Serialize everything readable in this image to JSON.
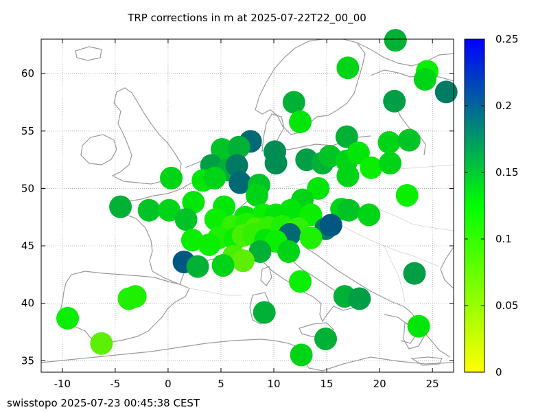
{
  "title": "TRP corrections in m at 2025-07-22T22_00_00",
  "footer": "swisstopo 2025-07-23 00:45:38 CEST",
  "colors": {
    "station_low": "#ffff00",
    "station_mid": "#00ff00",
    "station_high": "#0000ff"
  },
  "chart_data": {
    "type": "scatter",
    "x_ticks": [
      -10,
      -5,
      0,
      5,
      10,
      15,
      20,
      25
    ],
    "y_ticks": [
      35,
      40,
      45,
      50,
      55,
      60
    ],
    "xlim": [
      -12,
      27
    ],
    "ylim": [
      34,
      63
    ],
    "grid": true,
    "colorbar": {
      "ticks": [
        "0",
        "0.05",
        "0.1",
        "0.15",
        "0.2",
        "0.25"
      ],
      "range": [
        0,
        0.25
      ],
      "stops": [
        "#ffff00",
        "#00ff00",
        "#0000ff"
      ]
    },
    "stations": [
      {
        "lon": 21.5,
        "lat": 62.9,
        "val": 0.16
      },
      {
        "lon": 17.0,
        "lat": 60.5,
        "val": 0.14
      },
      {
        "lon": 24.5,
        "lat": 60.2,
        "val": 0.12
      },
      {
        "lon": 24.3,
        "lat": 59.5,
        "val": 0.14
      },
      {
        "lon": 26.3,
        "lat": 58.4,
        "val": 0.19
      },
      {
        "lon": 21.4,
        "lat": 57.6,
        "val": 0.17
      },
      {
        "lon": 11.9,
        "lat": 57.5,
        "val": 0.16
      },
      {
        "lon": 12.5,
        "lat": 55.8,
        "val": 0.13
      },
      {
        "lon": 7.8,
        "lat": 54.1,
        "val": 0.2
      },
      {
        "lon": 16.9,
        "lat": 54.5,
        "val": 0.16
      },
      {
        "lon": 20.9,
        "lat": 54.0,
        "val": 0.14
      },
      {
        "lon": 22.8,
        "lat": 54.2,
        "val": 0.15
      },
      {
        "lon": 5.1,
        "lat": 53.4,
        "val": 0.15
      },
      {
        "lon": 6.7,
        "lat": 53.6,
        "val": 0.16
      },
      {
        "lon": 10.1,
        "lat": 53.2,
        "val": 0.18
      },
      {
        "lon": 10.2,
        "lat": 52.2,
        "val": 0.18
      },
      {
        "lon": 13.1,
        "lat": 52.5,
        "val": 0.17
      },
      {
        "lon": 14.6,
        "lat": 52.2,
        "val": 0.16
      },
      {
        "lon": 15.3,
        "lat": 52.8,
        "val": 0.15
      },
      {
        "lon": 16.9,
        "lat": 52.4,
        "val": 0.14
      },
      {
        "lon": 18.0,
        "lat": 53.1,
        "val": 0.13
      },
      {
        "lon": 19.2,
        "lat": 51.8,
        "val": 0.12
      },
      {
        "lon": 21.0,
        "lat": 52.2,
        "val": 0.14
      },
      {
        "lon": 4.1,
        "lat": 52.0,
        "val": 0.17
      },
      {
        "lon": 5.6,
        "lat": 51.6,
        "val": 0.16
      },
      {
        "lon": 6.5,
        "lat": 52.0,
        "val": 0.19
      },
      {
        "lon": 17.0,
        "lat": 51.1,
        "val": 0.14
      },
      {
        "lon": 0.3,
        "lat": 50.9,
        "val": 0.14
      },
      {
        "lon": 3.3,
        "lat": 50.7,
        "val": 0.13
      },
      {
        "lon": 4.4,
        "lat": 50.9,
        "val": 0.14
      },
      {
        "lon": 6.8,
        "lat": 50.5,
        "val": 0.2
      },
      {
        "lon": 8.6,
        "lat": 50.3,
        "val": 0.15
      },
      {
        "lon": 8.4,
        "lat": 49.4,
        "val": 0.14
      },
      {
        "lon": 14.2,
        "lat": 50.0,
        "val": 0.13
      },
      {
        "lon": 22.6,
        "lat": 49.4,
        "val": 0.12
      },
      {
        "lon": 12.7,
        "lat": 49.0,
        "val": 0.14
      },
      {
        "lon": 2.4,
        "lat": 48.8,
        "val": 0.13
      },
      {
        "lon": -4.5,
        "lat": 48.4,
        "val": 0.16
      },
      {
        "lon": -1.8,
        "lat": 48.1,
        "val": 0.15
      },
      {
        "lon": 0.1,
        "lat": 48.1,
        "val": 0.14
      },
      {
        "lon": 5.3,
        "lat": 48.4,
        "val": 0.13
      },
      {
        "lon": 16.4,
        "lat": 48.2,
        "val": 0.14
      },
      {
        "lon": 17.1,
        "lat": 48.1,
        "val": 0.15
      },
      {
        "lon": 19.0,
        "lat": 47.7,
        "val": 0.14
      },
      {
        "lon": 1.7,
        "lat": 47.3,
        "val": 0.15
      },
      {
        "lon": 4.5,
        "lat": 47.3,
        "val": 0.12
      },
      {
        "lon": 7.3,
        "lat": 47.5,
        "val": 0.13
      },
      {
        "lon": 9.0,
        "lat": 47.7,
        "val": 0.12
      },
      {
        "lon": 10.2,
        "lat": 47.7,
        "val": 0.13
      },
      {
        "lon": 11.6,
        "lat": 48.1,
        "val": 0.13
      },
      {
        "lon": 13.5,
        "lat": 47.7,
        "val": 0.12
      },
      {
        "lon": 6.1,
        "lat": 46.7,
        "val": 0.1
      },
      {
        "lon": 7.4,
        "lat": 46.9,
        "val": 0.11
      },
      {
        "lon": 8.3,
        "lat": 46.5,
        "val": 0.09
      },
      {
        "lon": 9.5,
        "lat": 46.6,
        "val": 0.1
      },
      {
        "lon": 10.8,
        "lat": 46.7,
        "val": 0.11
      },
      {
        "lon": 12.3,
        "lat": 46.5,
        "val": 0.1
      },
      {
        "lon": 11.5,
        "lat": 46.0,
        "val": 0.2
      },
      {
        "lon": 14.9,
        "lat": 46.5,
        "val": 0.19
      },
      {
        "lon": 15.4,
        "lat": 46.8,
        "val": 0.21
      },
      {
        "lon": 4.8,
        "lat": 45.7,
        "val": 0.11
      },
      {
        "lon": 6.3,
        "lat": 45.6,
        "val": 0.12
      },
      {
        "lon": 7.1,
        "lat": 45.9,
        "val": 0.09
      },
      {
        "lon": 8.1,
        "lat": 46.0,
        "val": 0.1
      },
      {
        "lon": 9.2,
        "lat": 45.5,
        "val": 0.13
      },
      {
        "lon": 10.2,
        "lat": 45.4,
        "val": 0.12
      },
      {
        "lon": 13.5,
        "lat": 45.7,
        "val": 0.11
      },
      {
        "lon": 2.3,
        "lat": 45.5,
        "val": 0.12
      },
      {
        "lon": 3.9,
        "lat": 45.1,
        "val": 0.12
      },
      {
        "lon": 8.7,
        "lat": 44.5,
        "val": 0.16
      },
      {
        "lon": 11.4,
        "lat": 44.5,
        "val": 0.14
      },
      {
        "lon": 6.2,
        "lat": 44.1,
        "val": 0.09
      },
      {
        "lon": 7.1,
        "lat": 43.7,
        "val": 0.08
      },
      {
        "lon": 1.5,
        "lat": 43.6,
        "val": 0.21
      },
      {
        "lon": 2.8,
        "lat": 43.2,
        "val": 0.16
      },
      {
        "lon": 5.2,
        "lat": 43.3,
        "val": 0.14
      },
      {
        "lon": 23.3,
        "lat": 42.6,
        "val": 0.17
      },
      {
        "lon": 12.5,
        "lat": 41.9,
        "val": 0.12
      },
      {
        "lon": -3.7,
        "lat": 40.4,
        "val": 0.11
      },
      {
        "lon": -3.1,
        "lat": 40.6,
        "val": 0.11
      },
      {
        "lon": 16.7,
        "lat": 40.6,
        "val": 0.16
      },
      {
        "lon": 18.1,
        "lat": 40.4,
        "val": 0.17
      },
      {
        "lon": 9.1,
        "lat": 39.2,
        "val": 0.16
      },
      {
        "lon": -9.5,
        "lat": 38.7,
        "val": 0.12
      },
      {
        "lon": 23.7,
        "lat": 38.0,
        "val": 0.13
      },
      {
        "lon": 14.9,
        "lat": 36.9,
        "val": 0.16
      },
      {
        "lon": -6.3,
        "lat": 36.5,
        "val": 0.08
      },
      {
        "lon": 12.6,
        "lat": 35.5,
        "val": 0.14
      }
    ]
  }
}
